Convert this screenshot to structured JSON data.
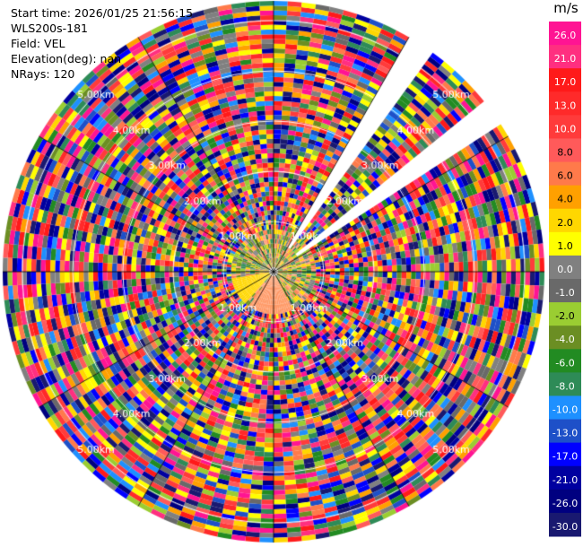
{
  "info": {
    "start_time": "Start time: 2026/01/25 21:56:15",
    "station": "WLS200s-181",
    "field": "Field: VEL",
    "elevation": "Elevation(deg): nan",
    "nrays": "NRays: 120"
  },
  "colorbar": {
    "unit": "m/s",
    "ticks": [
      "26.0",
      "21.0",
      "17.0",
      "13.0",
      "10.0",
      "8.0",
      "6.0",
      "4.0",
      "2.0",
      "1.0",
      "0.0",
      "-1.0",
      "-2.0",
      "-4.0",
      "-6.0",
      "-8.0",
      "-10.0",
      "-13.0",
      "-17.0",
      "-21.0",
      "-26.0",
      "-30.0"
    ],
    "colors": [
      "#ff1493",
      "#ff2f80",
      "#ff1a1a",
      "#ff2a2a",
      "#ff3b3b",
      "#ff5a5a",
      "#ff7a4a",
      "#ffa000",
      "#ffd700",
      "#ffff00",
      "#808080",
      "#696969",
      "#9acd32",
      "#6b8e23",
      "#228b22",
      "#2e8b57",
      "#1e90ff",
      "#1e50c8",
      "#0000ff",
      "#0000a0",
      "#000080",
      "#191970"
    ]
  },
  "chart_data": {
    "type": "polar-ppi",
    "field": "VEL",
    "units": "m/s",
    "nrays": 120,
    "range_rings": [
      "1.00km",
      "2.00km",
      "3.00km",
      "4.00km",
      "5.00km"
    ],
    "gap_sectors_deg": [
      [
        30,
        36
      ],
      [
        51,
        57
      ]
    ],
    "value_range": [
      -30,
      26
    ]
  }
}
